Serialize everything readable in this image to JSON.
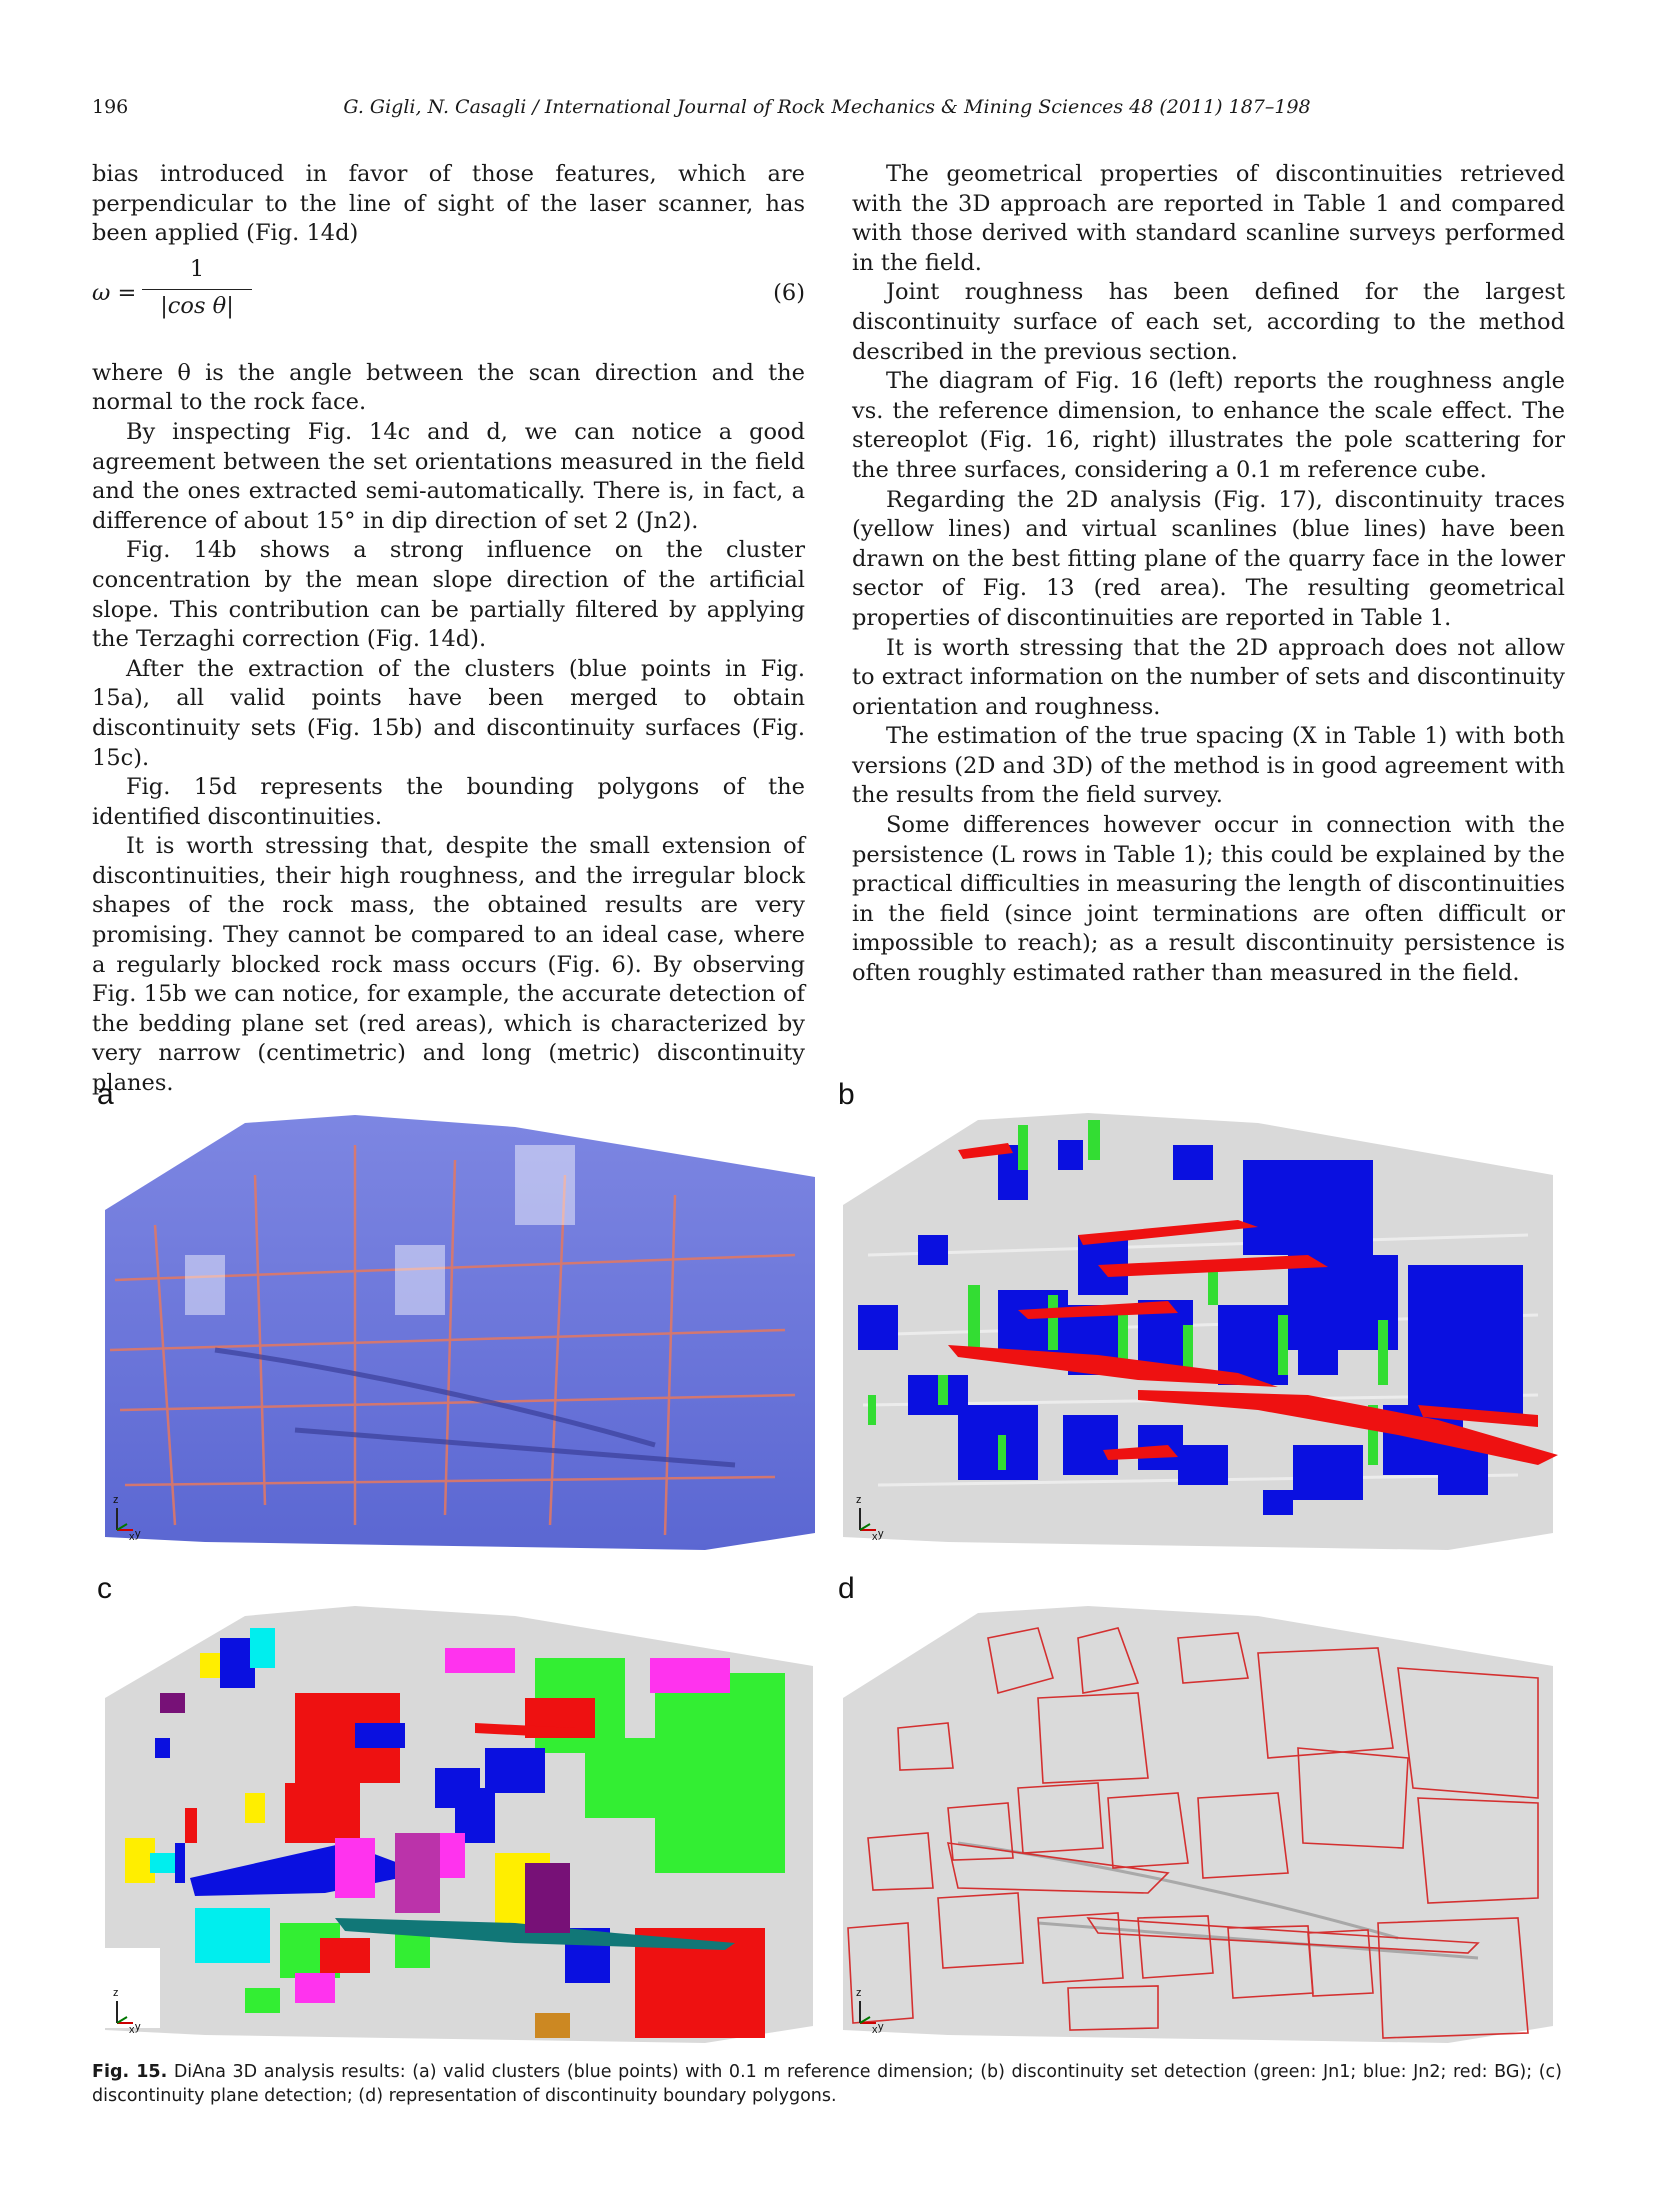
{
  "header": {
    "page_number": "196",
    "running_title": "G. Gigli, N. Casagli / International Journal of Rock Mechanics & Mining Sciences 48 (2011) 187–198"
  },
  "left_column": {
    "p1": "bias introduced in favor of those features, which are perpendicular to the line of sight of the laser scanner, has been applied (Fig. 14d)",
    "eq_lhs": "ω =",
    "eq_num": "1",
    "eq_den": "|cos θ|",
    "eq_no": "(6)",
    "p2": "where θ is the angle between the scan direction and the normal to the rock face.",
    "p3": "By inspecting Fig. 14c and d, we can notice a good agreement between the set orientations measured in the field and the ones extracted semi-automatically. There is, in fact, a difference of about 15° in dip direction of set 2 (Jn2).",
    "p4": "Fig. 14b shows a strong influence on the cluster concentration by the mean slope direction of the artificial slope. This contribution can be partially filtered by applying the Terzaghi correction (Fig. 14d).",
    "p5": "After the extraction of the clusters (blue points in Fig. 15a), all valid points have been merged to obtain discontinuity sets (Fig. 15b) and discontinuity surfaces (Fig. 15c).",
    "p6": "Fig. 15d represents the bounding polygons of the identified discontinuities.",
    "p7": "It is worth stressing that, despite the small extension of discontinuities, their high roughness, and the irregular block shapes of the rock mass, the obtained results are very promising. They cannot be compared to an ideal case, where a regularly blocked rock mass occurs (Fig. 6). By observing Fig. 15b we can notice, for example, the accurate detection of the bedding plane set (red areas), which is characterized by very narrow (centimetric) and long (metric) discontinuity planes."
  },
  "right_column": {
    "p1": "The geometrical properties of discontinuities retrieved with the 3D approach are reported in Table 1 and compared with those derived with standard scanline surveys performed in the field.",
    "p2": "Joint roughness has been defined for the largest discontinuity surface of each set, according to the method described in the previous section.",
    "p3": "The diagram of Fig. 16 (left) reports the roughness angle vs. the reference dimension, to enhance the scale effect. The stereoplot (Fig. 16, right) illustrates the pole scattering for the three surfaces, considering a 0.1 m reference cube.",
    "p4": "Regarding the 2D analysis (Fig. 17), discontinuity traces (yellow lines) and virtual scanlines (blue lines) have been drawn on the best fitting plane of the quarry face in the lower sector of Fig. 13 (red area). The resulting geometrical properties of discontinuities are reported in Table 1.",
    "p5": "It is worth stressing that the 2D approach does not allow to extract information on the number of sets and discontinuity orientation and roughness.",
    "p6": "The estimation of the true spacing (X in Table 1) with both versions (2D and 3D) of the method is in good agreement with the results from the field survey.",
    "p7": "Some differences however occur in connection with the persistence (L rows in Table 1); this could be explained by the practical difficulties in measuring the length of discontinuities in the field (since joint terminations are often difficult or impossible to reach); as a result discontinuity persistence is often roughly estimated rather than measured in the field."
  },
  "figure": {
    "panel_a": "a",
    "panel_b": "b",
    "panel_c": "c",
    "panel_d": "d",
    "axis_z": "z",
    "axis_x": "x",
    "axis_y": "y",
    "colors": {
      "rock_gray": "#d7d7d7",
      "cluster_blue": "#5a6ad6",
      "point_red": "#e06050",
      "set_green": "#33dd33",
      "set_blue": "#0a10e0",
      "set_red": "#ee1111",
      "polygon_red": "#d43030"
    },
    "caption_label": "Fig. 15.",
    "caption_text": "DiAna 3D analysis results: (a) valid clusters (blue points) with 0.1 m reference dimension; (b) discontinuity set detection (green: Jn1; blue: Jn2; red: BG); (c) discontinuity plane detection; (d) representation of discontinuity boundary polygons."
  }
}
